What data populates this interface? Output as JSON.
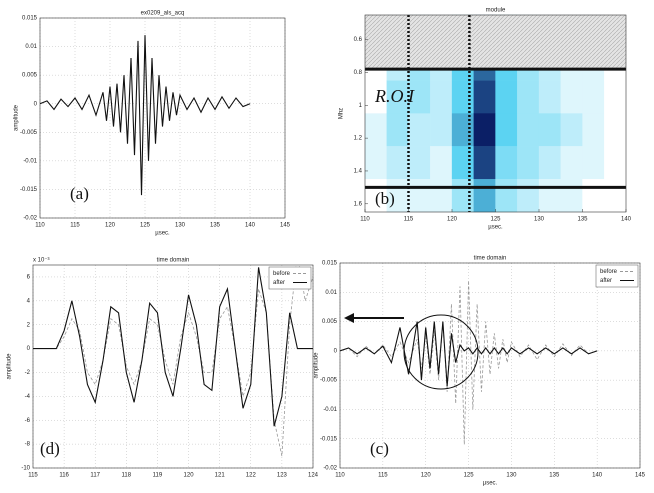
{
  "chart_data": [
    {
      "type": "line",
      "title": "ex0209_als_acq",
      "xlabel": "µsec.",
      "ylabel": "amplitude",
      "annotations": [
        "(a)"
      ],
      "xlim": [
        110,
        145
      ],
      "xticks": [
        110,
        115,
        120,
        125,
        130,
        135,
        140,
        145
      ],
      "ylim": [
        -0.02,
        0.015
      ],
      "yticks": [
        -0.02,
        -0.015,
        -0.01,
        -0.005,
        0,
        0.005,
        0.01,
        0.015
      ],
      "grid": true,
      "x": [
        110,
        111,
        112,
        113,
        114,
        115,
        116,
        117,
        118,
        119,
        119.5,
        120,
        120.5,
        121,
        121.5,
        122,
        122.5,
        123,
        123.5,
        124,
        124.5,
        125,
        125.5,
        126,
        126.5,
        127,
        127.5,
        128,
        128.5,
        129,
        129.5,
        130,
        131,
        132,
        133,
        134,
        135,
        136,
        137,
        138,
        139,
        140
      ],
      "series": [
        {
          "color": "#111111",
          "style": "solid",
          "values": [
            0,
            0.0005,
            -0.001,
            0.0008,
            -0.0005,
            0.001,
            -0.001,
            0.0015,
            -0.002,
            0.002,
            -0.003,
            0.003,
            -0.004,
            0.0035,
            -0.005,
            0.005,
            -0.007,
            0.008,
            -0.009,
            0.011,
            -0.016,
            0.012,
            -0.01,
            0.008,
            -0.007,
            0.005,
            -0.004,
            0.003,
            -0.003,
            0.002,
            -0.002,
            0.0015,
            -0.001,
            0.001,
            -0.0015,
            0.001,
            -0.001,
            0.0012,
            -0.0008,
            0.001,
            -0.0005,
            0
          ]
        }
      ]
    },
    {
      "type": "heatmap",
      "title": "module",
      "xlabel": "µsec.",
      "ylabel": "Mhz",
      "annotations": [
        "R.O.I",
        "(b)"
      ],
      "xlim": [
        110,
        140
      ],
      "xticks": [
        110,
        115,
        120,
        125,
        130,
        135,
        140
      ],
      "ylim": [
        1.65,
        0.45
      ],
      "yticks": [
        0.6,
        0.8,
        1,
        1.2,
        1.4,
        1.6
      ],
      "grid": false,
      "colormap": [
        "#ffffff",
        "#5cd3f2",
        "#0b1f66"
      ],
      "x": [
        111.25,
        113.75,
        116.25,
        118.75,
        121.25,
        123.75,
        126.25,
        128.75,
        131.25,
        133.75,
        136.25,
        138.75
      ],
      "y": [
        0.55,
        0.75,
        0.95,
        1.15,
        1.35,
        1.55
      ],
      "z": [
        [
          0,
          0.1,
          0.2,
          0.1,
          0.4,
          0.7,
          0.4,
          0.2,
          0.1,
          0.1,
          0.1,
          0
        ],
        [
          0,
          0.2,
          0.3,
          0.2,
          0.5,
          0.8,
          0.5,
          0.3,
          0.2,
          0.1,
          0.1,
          0
        ],
        [
          0,
          0.3,
          0.3,
          0.2,
          0.5,
          0.9,
          0.5,
          0.3,
          0.2,
          0.1,
          0.1,
          0
        ],
        [
          0.1,
          0.3,
          0.2,
          0.2,
          0.6,
          1,
          0.5,
          0.3,
          0.3,
          0.2,
          0.1,
          0
        ],
        [
          0.1,
          0.2,
          0.2,
          0.1,
          0.5,
          0.9,
          0.4,
          0.3,
          0.2,
          0.1,
          0.1,
          0
        ],
        [
          0,
          0.1,
          0.1,
          0.1,
          0.3,
          0.6,
          0.3,
          0.2,
          0.1,
          0.1,
          0,
          0
        ]
      ],
      "roi": {
        "x": [
          115,
          122
        ],
        "y": [
          0.78,
          1.5
        ]
      }
    },
    {
      "type": "line",
      "title": "time domain",
      "ylabel": "amplitude",
      "y_multiplier": "x 10⁻³",
      "annotations": [
        "(d)"
      ],
      "legend": "upper right",
      "grid": true,
      "xlim": [
        115,
        124
      ],
      "xticks": [
        115,
        116,
        117,
        118,
        119,
        120,
        121,
        122,
        123,
        124
      ],
      "ylim": [
        -10,
        7
      ],
      "yticks": [
        -10,
        -8,
        -6,
        -4,
        -2,
        0,
        2,
        4,
        6
      ],
      "x": [
        115,
        115.25,
        115.5,
        115.75,
        116,
        116.25,
        116.5,
        116.75,
        117,
        117.25,
        117.5,
        117.75,
        118,
        118.25,
        118.5,
        118.75,
        119,
        119.25,
        119.5,
        119.75,
        120,
        120.25,
        120.5,
        120.75,
        121,
        121.25,
        121.5,
        121.75,
        122,
        122.25,
        122.5,
        122.75,
        123,
        123.25,
        123.5,
        123.75,
        124
      ],
      "series": [
        {
          "name": "before",
          "color": "#999999",
          "style": "dashed",
          "values": [
            0,
            0,
            0,
            0,
            1,
            2.5,
            1.5,
            -2,
            -3,
            -1,
            2.5,
            2,
            -1.5,
            -3,
            -1,
            2.5,
            2,
            -1,
            -3,
            1,
            3,
            1,
            -2,
            -2,
            2.5,
            3.5,
            0,
            -4,
            -2,
            5,
            3,
            -6,
            -9,
            2,
            8,
            4,
            6
          ]
        },
        {
          "name": "after",
          "color": "#111111",
          "style": "solid",
          "values": [
            0,
            0,
            0,
            0,
            1.5,
            4,
            1,
            -3,
            -4.5,
            -1,
            3.5,
            3,
            -2,
            -4.5,
            -1,
            3.8,
            3,
            -2,
            -4,
            0,
            4.5,
            2,
            -3,
            -3.5,
            3.5,
            5,
            0,
            -5,
            -3,
            6.8,
            3,
            -6.5,
            -4,
            3,
            0,
            0,
            0
          ]
        }
      ]
    },
    {
      "type": "line",
      "title": "time domain",
      "xlabel": "µsec.",
      "ylabel": "amplitude",
      "annotations": [
        "(c)"
      ],
      "legend": "upper right",
      "grid": true,
      "xlim": [
        110,
        145
      ],
      "xticks": [
        110,
        115,
        120,
        125,
        130,
        135,
        140,
        145
      ],
      "ylim": [
        -0.02,
        0.015
      ],
      "yticks": [
        -0.02,
        -0.015,
        -0.01,
        -0.005,
        0,
        0.005,
        0.01,
        0.015
      ],
      "x": [
        110,
        111,
        112,
        113,
        114,
        115,
        116,
        117,
        118,
        119,
        119.5,
        120,
        120.5,
        121,
        121.5,
        122,
        122.5,
        123,
        123.5,
        124,
        124.5,
        125,
        125.5,
        126,
        126.5,
        127,
        127.5,
        128,
        128.5,
        129,
        129.5,
        130,
        131,
        132,
        133,
        134,
        135,
        136,
        137,
        138,
        139,
        140
      ],
      "series": [
        {
          "name": "before",
          "color": "#999999",
          "style": "dashed",
          "values": [
            0,
            0.0005,
            -0.001,
            0.0008,
            -0.0005,
            0.001,
            -0.001,
            0.0015,
            -0.002,
            0.002,
            -0.003,
            0.003,
            -0.004,
            0.0035,
            -0.005,
            0.005,
            -0.007,
            0.008,
            -0.009,
            0.011,
            -0.016,
            0.012,
            -0.01,
            0.008,
            -0.007,
            0.005,
            -0.004,
            0.003,
            -0.003,
            0.002,
            -0.002,
            0.0015,
            -0.001,
            0.001,
            -0.0015,
            0.001,
            -0.001,
            0.0012,
            -0.0008,
            0.001,
            -0.0005,
            0
          ]
        },
        {
          "name": "after",
          "color": "#111111",
          "style": "solid",
          "values": [
            0,
            0.0005,
            -0.0005,
            0.0005,
            -0.0005,
            0.0008,
            -0.002,
            0.004,
            -0.004,
            0.005,
            -0.005,
            0.004,
            -0.003,
            0.005,
            -0.004,
            0.005,
            -0.006,
            0.003,
            -0.002,
            0.001,
            0,
            0.0005,
            -0.0005,
            0.0005,
            -0.0005,
            0.0005,
            -0.0005,
            0.0005,
            -0.0005,
            0.0005,
            -0.0005,
            0.0005,
            -0.0005,
            0.0005,
            -0.0005,
            0.0005,
            -0.0005,
            0.0005,
            -0.0005,
            0.0005,
            -0.0005,
            0
          ]
        }
      ]
    }
  ]
}
